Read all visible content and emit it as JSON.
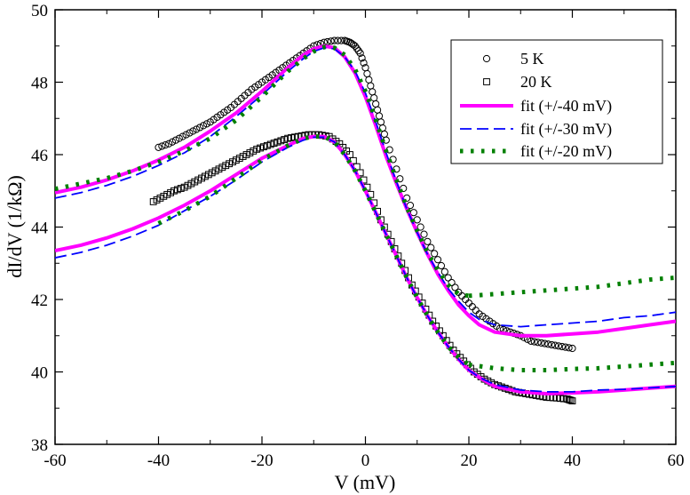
{
  "chart_data": {
    "type": "scatter",
    "xlabel": "V (mV)",
    "ylabel": "dI/dV (1/kΩ)",
    "xlim": [
      -60,
      60
    ],
    "ylim": [
      38,
      50
    ],
    "x_ticks": [
      -60,
      -40,
      -20,
      0,
      20,
      40,
      60
    ],
    "y_ticks": [
      38,
      40,
      42,
      44,
      46,
      48,
      50
    ],
    "grid": false,
    "legend_position": "top-right",
    "series": [
      {
        "name": "5 K",
        "kind": "markers",
        "marker": "circle",
        "color": "#000000",
        "x": [
          -40,
          -38,
          -36,
          -34,
          -32,
          -30,
          -28,
          -26,
          -24,
          -22,
          -20,
          -18,
          -16,
          -14,
          -12,
          -10,
          -8,
          -6,
          -4,
          -3,
          -2,
          -1,
          0,
          1,
          2,
          3,
          4,
          6,
          8,
          10,
          12,
          14,
          16,
          18,
          20,
          22,
          24,
          26,
          28,
          30,
          32,
          34,
          36,
          38,
          40
        ],
        "y": [
          46.2,
          46.3,
          46.45,
          46.6,
          46.75,
          46.9,
          47.1,
          47.3,
          47.55,
          47.8,
          48.0,
          48.2,
          48.4,
          48.6,
          48.8,
          49.0,
          49.1,
          49.15,
          49.15,
          49.1,
          49.0,
          48.8,
          48.4,
          47.9,
          47.4,
          46.9,
          46.4,
          45.6,
          44.8,
          44.2,
          43.6,
          43.1,
          42.6,
          42.2,
          41.9,
          41.6,
          41.4,
          41.2,
          41.1,
          41.0,
          40.85,
          40.8,
          40.75,
          40.7,
          40.65
        ]
      },
      {
        "name": "20 K",
        "kind": "markers",
        "marker": "square",
        "color": "#000000",
        "x": [
          -41,
          -39,
          -37,
          -35,
          -33,
          -31,
          -29,
          -27,
          -25,
          -23,
          -21,
          -19,
          -17,
          -15,
          -13,
          -11,
          -9,
          -7,
          -5,
          -3,
          -1,
          1,
          3,
          5,
          7,
          9,
          11,
          13,
          15,
          17,
          19,
          21,
          23,
          25,
          27,
          29,
          31,
          33,
          35,
          37,
          39,
          40
        ],
        "y": [
          44.7,
          44.85,
          45.0,
          45.1,
          45.25,
          45.4,
          45.55,
          45.7,
          45.85,
          46.0,
          46.15,
          46.25,
          46.35,
          46.45,
          46.5,
          46.55,
          46.55,
          46.5,
          46.3,
          46.0,
          45.5,
          44.9,
          44.2,
          43.6,
          43.0,
          42.4,
          41.9,
          41.4,
          41.0,
          40.6,
          40.3,
          40.0,
          39.8,
          39.65,
          39.55,
          39.45,
          39.4,
          39.35,
          39.3,
          39.28,
          39.25,
          39.2
        ]
      },
      {
        "name": "fit (+/-40 mV)",
        "kind": "line",
        "dash": "solid",
        "color": "#ff00ff",
        "groups": [
          {
            "x": [
              -60,
              -55,
              -50,
              -45,
              -40,
              -35,
              -30,
              -25,
              -20,
              -15,
              -12,
              -10,
              -8,
              -6,
              -4,
              -2,
              0,
              2,
              4,
              6,
              8,
              10,
              12,
              14,
              16,
              18,
              20,
              22,
              25,
              30,
              35,
              40,
              45,
              50,
              55,
              60
            ],
            "y": [
              44.95,
              45.1,
              45.3,
              45.55,
              45.85,
              46.2,
              46.65,
              47.15,
              47.75,
              48.4,
              48.75,
              48.92,
              49.0,
              48.95,
              48.7,
              48.25,
              47.6,
              46.8,
              45.95,
              45.2,
              44.5,
              43.85,
              43.25,
              42.7,
              42.25,
              41.85,
              41.55,
              41.3,
              41.1,
              41.0,
              41.0,
              41.05,
              41.1,
              41.2,
              41.3,
              41.4
            ]
          },
          {
            "x": [
              -60,
              -55,
              -50,
              -45,
              -40,
              -35,
              -30,
              -25,
              -20,
              -15,
              -12,
              -10,
              -8,
              -6,
              -4,
              -2,
              0,
              2,
              4,
              6,
              8,
              10,
              12,
              14,
              16,
              18,
              20,
              22,
              25,
              30,
              35,
              40,
              45,
              50,
              55,
              60
            ],
            "y": [
              43.35,
              43.5,
              43.7,
              43.95,
              44.25,
              44.6,
              45.0,
              45.45,
              45.9,
              46.25,
              46.45,
              46.5,
              46.5,
              46.35,
              46.0,
              45.55,
              45.0,
              44.4,
              43.8,
              43.2,
              42.6,
              42.05,
              41.55,
              41.1,
              40.7,
              40.35,
              40.05,
              39.85,
              39.6,
              39.45,
              39.4,
              39.42,
              39.45,
              39.5,
              39.55,
              39.6
            ]
          }
        ]
      },
      {
        "name": "fit (+/-30 mV)",
        "kind": "line",
        "dash": "dashed",
        "color": "#0000ff",
        "groups": [
          {
            "x": [
              -60,
              -55,
              -50,
              -45,
              -40,
              -35,
              -30,
              -25,
              -20,
              -15,
              -12,
              -10,
              -8,
              -6,
              -4,
              -2,
              0,
              2,
              4,
              6,
              8,
              10,
              12,
              14,
              16,
              18,
              20,
              22,
              25,
              30,
              35,
              40,
              45,
              50,
              55,
              60
            ],
            "y": [
              44.8,
              44.95,
              45.15,
              45.4,
              45.7,
              46.05,
              46.5,
              47.05,
              47.65,
              48.3,
              48.65,
              48.85,
              48.95,
              48.92,
              48.7,
              48.3,
              47.7,
              46.9,
              46.05,
              45.25,
              44.5,
              43.85,
              43.25,
              42.75,
              42.3,
              41.95,
              41.65,
              41.45,
              41.3,
              41.25,
              41.3,
              41.35,
              41.4,
              41.5,
              41.55,
              41.65
            ]
          },
          {
            "x": [
              -60,
              -55,
              -50,
              -45,
              -40,
              -35,
              -30,
              -25,
              -20,
              -15,
              -12,
              -10,
              -8,
              -6,
              -4,
              -2,
              0,
              2,
              4,
              6,
              8,
              10,
              12,
              14,
              16,
              18,
              20,
              22,
              25,
              30,
              35,
              40,
              45,
              50,
              55,
              60
            ],
            "y": [
              43.15,
              43.3,
              43.5,
              43.75,
              44.05,
              44.45,
              44.85,
              45.3,
              45.8,
              46.2,
              46.4,
              46.48,
              46.48,
              46.35,
              46.0,
              45.55,
              45.0,
              44.4,
              43.8,
              43.2,
              42.6,
              42.05,
              41.55,
              41.1,
              40.7,
              40.35,
              40.05,
              39.85,
              39.65,
              39.5,
              39.45,
              39.45,
              39.5,
              39.52,
              39.56,
              39.6
            ]
          }
        ]
      },
      {
        "name": "fit (+/-20 mV)",
        "kind": "line",
        "dash": "dotted",
        "color": "#008000",
        "groups": [
          {
            "x": [
              -60,
              -55,
              -50,
              -45,
              -40,
              -35,
              -30,
              -25,
              -20,
              -15,
              -12,
              -10,
              -8,
              -6,
              -4,
              -2,
              0,
              2,
              4,
              6,
              8,
              10,
              12,
              14,
              16,
              18,
              20
            ],
            "y": [
              45.05,
              45.2,
              45.35,
              45.55,
              45.8,
              46.1,
              46.45,
              46.95,
              47.6,
              48.3,
              48.65,
              48.85,
              48.97,
              48.95,
              48.75,
              48.35,
              47.75,
              46.95,
              46.1,
              45.3,
              44.55,
              43.9,
              43.3,
              42.8,
              42.4,
              42.15,
              42.1
            ]
          },
          {
            "x": [
              20,
              25,
              30,
              35,
              40,
              45,
              50,
              55,
              60
            ],
            "y": [
              42.1,
              42.15,
              42.2,
              42.25,
              42.3,
              42.35,
              42.45,
              42.55,
              42.6
            ]
          },
          {
            "x": [
              -40,
              -35,
              -30,
              -25,
              -20,
              -15,
              -12,
              -10,
              -8,
              -6,
              -4,
              -2,
              0,
              2,
              4,
              6,
              8,
              10,
              12,
              14,
              16,
              18,
              20
            ],
            "y": [
              44.1,
              44.45,
              44.85,
              45.35,
              45.85,
              46.25,
              46.45,
              46.5,
              46.5,
              46.35,
              46.0,
              45.55,
              45.0,
              44.4,
              43.8,
              43.2,
              42.6,
              42.05,
              41.55,
              41.1,
              40.7,
              40.4,
              40.2
            ]
          },
          {
            "x": [
              20,
              25,
              30,
              35,
              40,
              45,
              50,
              55,
              60
            ],
            "y": [
              40.2,
              40.1,
              40.05,
              40.05,
              40.08,
              40.1,
              40.15,
              40.2,
              40.25
            ]
          }
        ]
      }
    ]
  }
}
